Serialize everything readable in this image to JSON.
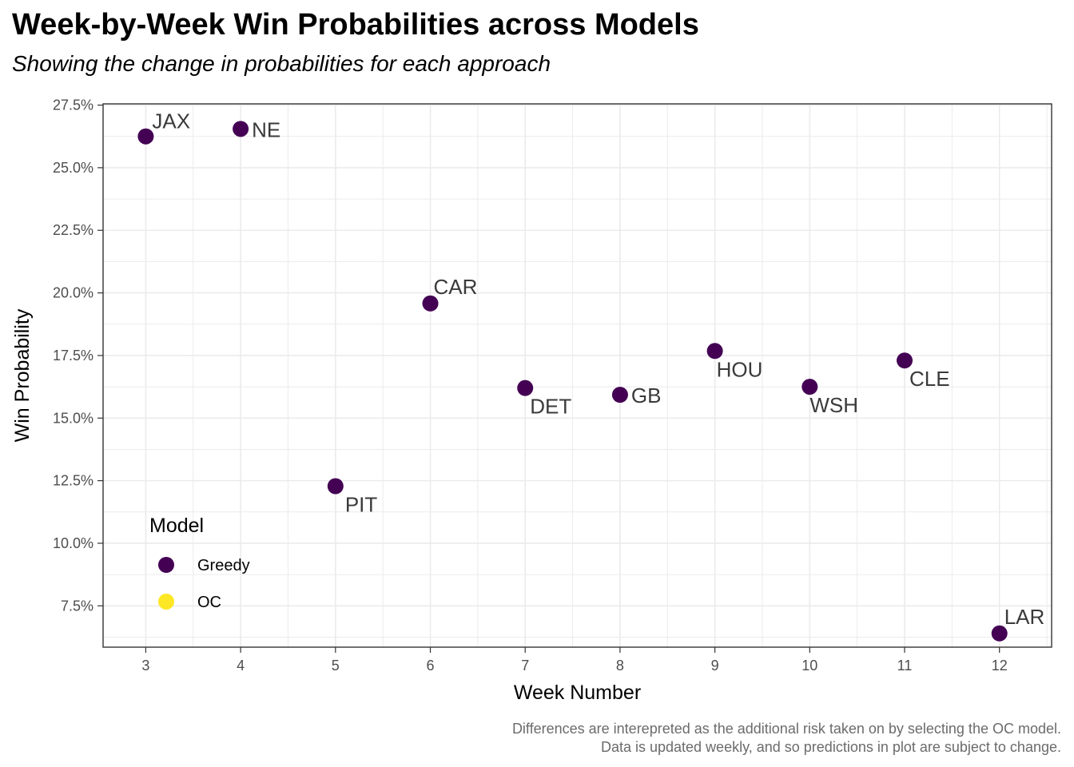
{
  "title": "Week-by-Week Win Probabilities across Models",
  "subtitle": "Showing the change in probabilities for each approach",
  "caption": [
    "Differences are interepreted as the additional risk taken on by selecting the OC model.",
    "Data is updated weekly, and so predictions in plot are subject to change."
  ],
  "colors": {
    "Greedy": "#440154",
    "OC": "#FDE725",
    "grid": "#ebebeb",
    "panel_border": "#333333"
  },
  "chart_data": {
    "type": "scatter",
    "xlabel": "Week Number",
    "ylabel": "Win Probability",
    "xlim": [
      2.55,
      12.55
    ],
    "ylim": [
      0.0585,
      0.2755
    ],
    "x_ticks": [
      3,
      4,
      5,
      6,
      7,
      8,
      9,
      10,
      11,
      12
    ],
    "y_ticks": [
      0.075,
      0.1,
      0.125,
      0.15,
      0.175,
      0.2,
      0.225,
      0.25,
      0.275
    ],
    "y_tick_labels": [
      "7.5%",
      "10.0%",
      "12.5%",
      "15.0%",
      "17.5%",
      "20.0%",
      "22.5%",
      "25.0%",
      "27.5%"
    ],
    "grid": true,
    "legend": {
      "title": "Model",
      "placement": "bottom-left inside",
      "entries": [
        "Greedy",
        "OC"
      ]
    },
    "series": [
      {
        "name": "Greedy",
        "points": [
          {
            "x": 3,
            "y": 0.2625,
            "label": "JAX"
          },
          {
            "x": 4,
            "y": 0.2655,
            "label": "NE"
          },
          {
            "x": 5,
            "y": 0.1228,
            "label": "PIT"
          },
          {
            "x": 6,
            "y": 0.1958,
            "label": "CAR"
          },
          {
            "x": 7,
            "y": 0.162,
            "label": "DET"
          },
          {
            "x": 8,
            "y": 0.1593,
            "label": "GB"
          },
          {
            "x": 9,
            "y": 0.1768,
            "label": "HOU"
          },
          {
            "x": 10,
            "y": 0.1625,
            "label": "WSH"
          },
          {
            "x": 11,
            "y": 0.173,
            "label": "CLE"
          },
          {
            "x": 12,
            "y": 0.064,
            "label": "LAR"
          }
        ]
      },
      {
        "name": "OC",
        "points": []
      }
    ]
  }
}
